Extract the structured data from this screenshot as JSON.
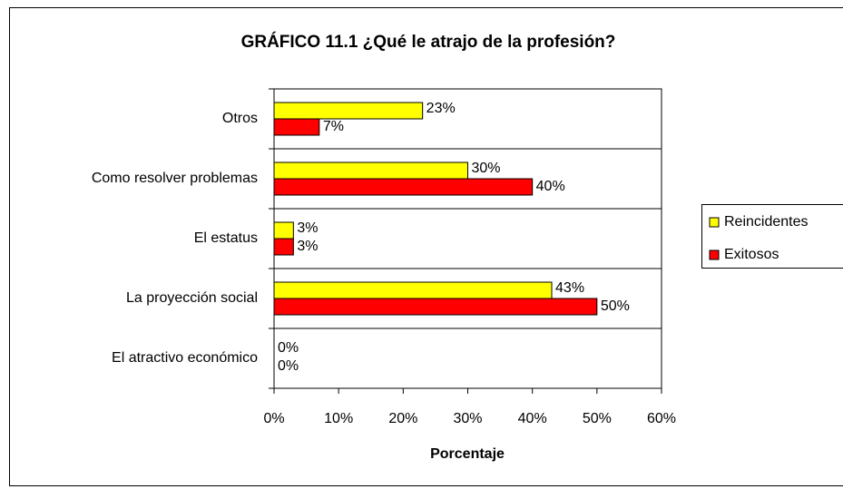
{
  "chart_data": {
    "type": "bar",
    "orientation": "horizontal",
    "title": "GRÁFICO 11.1 ¿Qué le atrajo de la profesión?",
    "x_label": "Porcentaje",
    "categories": [
      "Otros",
      "Como resolver problemas",
      "El estatus",
      "La proyección social",
      "El atractivo económico"
    ],
    "series": [
      {
        "name": "Reincidentes",
        "color": "#ffff00",
        "values": [
          23,
          30,
          3,
          43,
          0
        ],
        "value_labels": [
          "23%",
          "30%",
          "3%",
          "43%",
          "0%"
        ]
      },
      {
        "name": "Exitosos",
        "color": "#ff0000",
        "values": [
          7,
          40,
          3,
          50,
          0
        ],
        "value_labels": [
          "7%",
          "40%",
          "3%",
          "50%",
          "0%"
        ]
      }
    ],
    "xlim": [
      0,
      60
    ],
    "xticks": [
      {
        "value": 0,
        "label": "0%"
      },
      {
        "value": 10,
        "label": "10%"
      },
      {
        "value": 20,
        "label": "20%"
      },
      {
        "value": 30,
        "label": "30%"
      },
      {
        "value": 40,
        "label": "40%"
      },
      {
        "value": 50,
        "label": "50%"
      },
      {
        "value": 60,
        "label": "60%"
      }
    ],
    "legend": "right"
  }
}
